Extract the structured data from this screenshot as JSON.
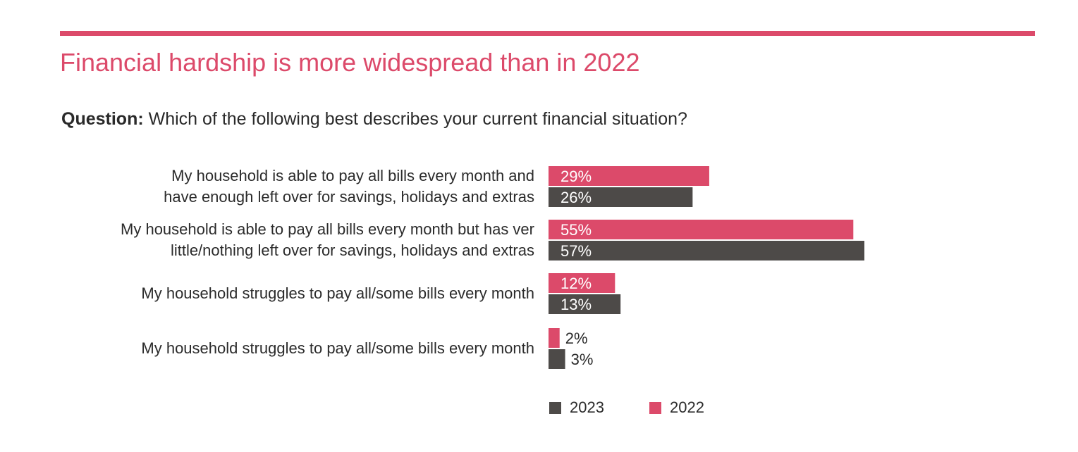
{
  "title": "Financial hardship is more widespread than in 2022",
  "question": {
    "prefix": "Question:",
    "text": " Which of the following best describes your current financial situation?"
  },
  "colors": {
    "series_2022": "#dc4a6a",
    "series_2023": "#4d4a48",
    "accent": "#dc4a6a"
  },
  "chart_data": {
    "type": "bar",
    "orientation": "horizontal",
    "categories": [
      [
        "My household is able to pay all bills every month and",
        "have enough left over for savings, holidays and extras"
      ],
      [
        "My household is able to pay all bills every month but has ver",
        "little/nothing left over for savings, holidays and extras"
      ],
      [
        "My household struggles to pay all/some bills every month"
      ],
      [
        "My household struggles to pay all/some bills every month"
      ]
    ],
    "series": [
      {
        "name": "2022",
        "color": "#dc4a6a",
        "values": [
          29,
          55,
          12,
          2
        ],
        "labels": [
          "29%",
          "55%",
          "12%",
          "2%"
        ]
      },
      {
        "name": "2023",
        "color": "#4d4a48",
        "values": [
          26,
          57,
          13,
          3
        ],
        "labels": [
          "26%",
          "57%",
          "13%",
          "3%"
        ]
      }
    ],
    "legend": {
      "items": [
        "2023",
        "2022"
      ],
      "placement": "bottom"
    },
    "grid": false
  }
}
